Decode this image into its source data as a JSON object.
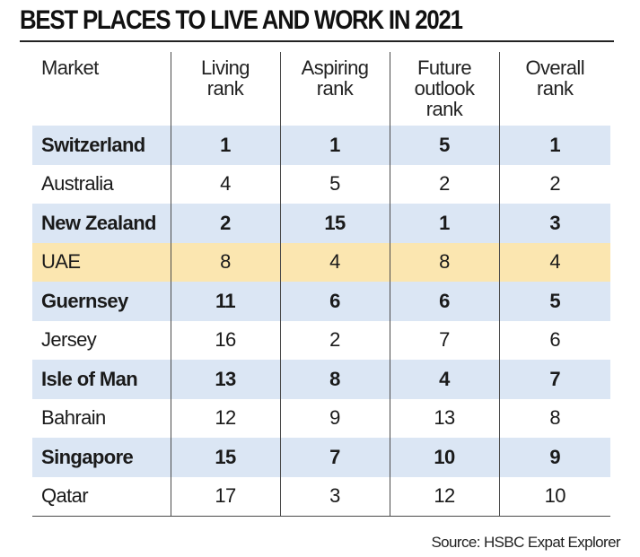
{
  "title": "BEST PLACES TO LIVE AND WORK IN 2021",
  "source": "Source: HSBC Expat Explorer",
  "columns": [
    "Market",
    "Living\nrank",
    "Aspiring\nrank",
    "Future\noutlook\nrank",
    "Overall\nrank"
  ],
  "colors": {
    "row_highlight_blue": "#dbe6f4",
    "row_highlight_yellow": "#fbe6b0",
    "rule": "#4a4a4a"
  },
  "chart_data": {
    "type": "table",
    "title": "BEST PLACES TO LIVE AND WORK IN 2021",
    "headers": [
      "Market",
      "Living rank",
      "Aspiring rank",
      "Future outlook rank",
      "Overall rank"
    ],
    "rows": [
      {
        "market": "Switzerland",
        "living": "1",
        "aspiring": "1",
        "future": "5",
        "overall": "1",
        "highlight": "blue"
      },
      {
        "market": "Australia",
        "living": "4",
        "aspiring": "5",
        "future": "2",
        "overall": "2",
        "highlight": "none"
      },
      {
        "market": "New Zealand",
        "living": "2",
        "aspiring": "15",
        "future": "1",
        "overall": "3",
        "highlight": "blue"
      },
      {
        "market": "UAE",
        "living": "8",
        "aspiring": "4",
        "future": "8",
        "overall": "4",
        "highlight": "yellow"
      },
      {
        "market": "Guernsey",
        "living": "11",
        "aspiring": "6",
        "future": "6",
        "overall": "5",
        "highlight": "blue"
      },
      {
        "market": "Jersey",
        "living": "16",
        "aspiring": "2",
        "future": "7",
        "overall": "6",
        "highlight": "none"
      },
      {
        "market": "Isle of Man",
        "living": "13",
        "aspiring": "8",
        "future": "4",
        "overall": "7",
        "highlight": "blue"
      },
      {
        "market": "Bahrain",
        "living": "12",
        "aspiring": "9",
        "future": "13",
        "overall": "8",
        "highlight": "none"
      },
      {
        "market": "Singapore",
        "living": "15",
        "aspiring": "7",
        "future": "10",
        "overall": "9",
        "highlight": "blue"
      },
      {
        "market": "Qatar",
        "living": "17",
        "aspiring": "3",
        "future": "12",
        "overall": "10",
        "highlight": "none"
      }
    ]
  }
}
